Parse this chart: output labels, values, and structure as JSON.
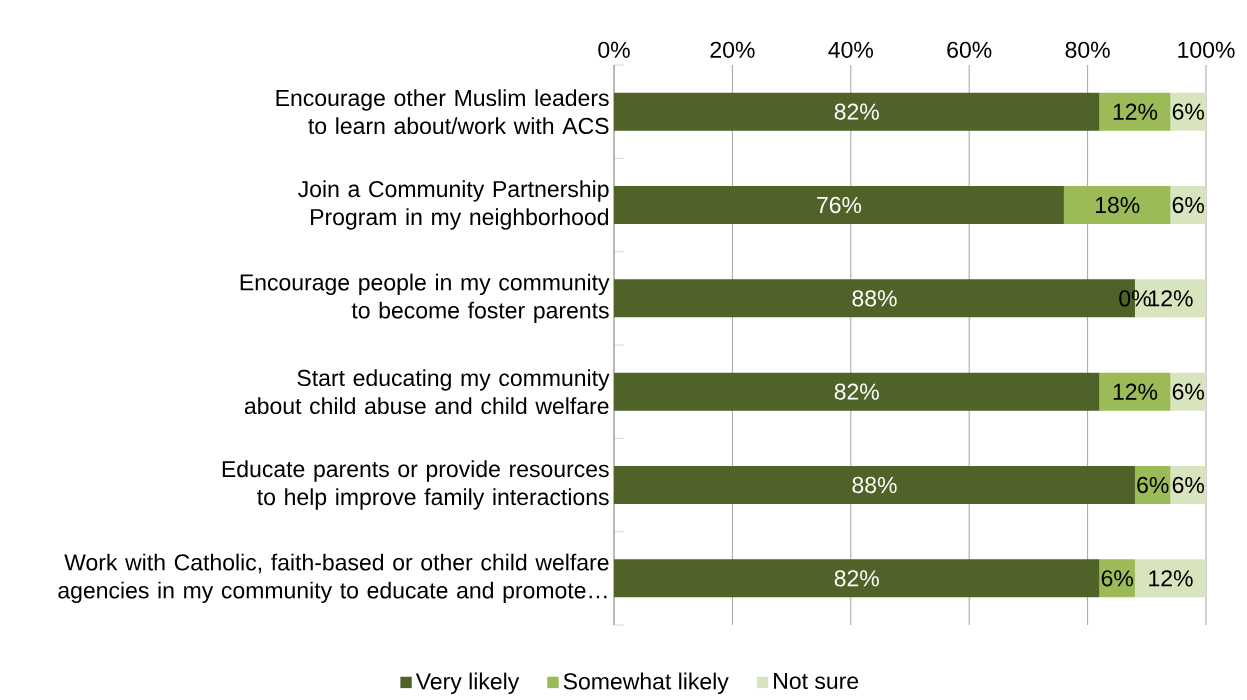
{
  "chart_data": {
    "type": "bar",
    "orientation": "horizontal",
    "stacked": true,
    "categories": [
      "Encourage other Muslim leaders to learn about/work with ACS",
      "Join a Community Partnership Program in my neighborhood",
      "Encourage people in my community to become foster parents",
      "Start educating my community about child abuse and child welfare",
      "Educate parents or provide resources to help improve family interactions",
      "Work with Catholic, faith-based or other child welfare agencies in my community to educate and promote…"
    ],
    "series": [
      {
        "name": "Very likely",
        "color": "#4f6228",
        "values": [
          82,
          76,
          88,
          82,
          88,
          82
        ],
        "value_labels": [
          "82%",
          "76%",
          "88%",
          "82%",
          "88%",
          "82%"
        ]
      },
      {
        "name": "Somewhat likely",
        "color": "#9bbb59",
        "values": [
          12,
          18,
          0,
          12,
          6,
          6
        ],
        "value_labels": [
          "12%",
          "18%",
          "0%",
          "12%",
          "6%",
          "6%"
        ]
      },
      {
        "name": "Not sure",
        "color": "#d7e4bd",
        "values": [
          6,
          6,
          12,
          6,
          6,
          12
        ],
        "value_labels": [
          "6%",
          "6%",
          "12%",
          "6%",
          "6%",
          "12%"
        ]
      }
    ],
    "xlim": [
      0,
      100
    ],
    "xticks": [
      {
        "value": 0,
        "label": "0%"
      },
      {
        "value": 20,
        "label": "20%"
      },
      {
        "value": 40,
        "label": "40%"
      },
      {
        "value": 60,
        "label": "60%"
      },
      {
        "value": 80,
        "label": "80%"
      },
      {
        "value": 100,
        "label": "100%"
      }
    ],
    "grid": "x",
    "legend": "bottom"
  }
}
